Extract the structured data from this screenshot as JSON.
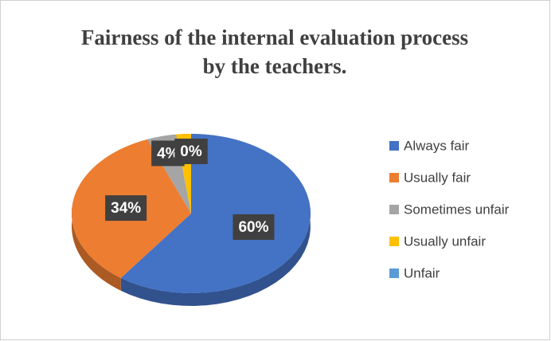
{
  "chart_data": {
    "type": "pie",
    "title": "Fairness of the internal evaluation process by the teachers.",
    "categories": [
      "Always fair",
      "Usually fair",
      "Sometimes unfair",
      "Usually unfair",
      "Unfair"
    ],
    "values": [
      60,
      34,
      4,
      2,
      0
    ],
    "value_labels": [
      "60%",
      "34%",
      "4%",
      null,
      "0%"
    ],
    "colors": [
      "#4472c4",
      "#ed7d31",
      "#a5a5a5",
      "#ffc000",
      "#5b9bd5"
    ],
    "legend": "right"
  }
}
